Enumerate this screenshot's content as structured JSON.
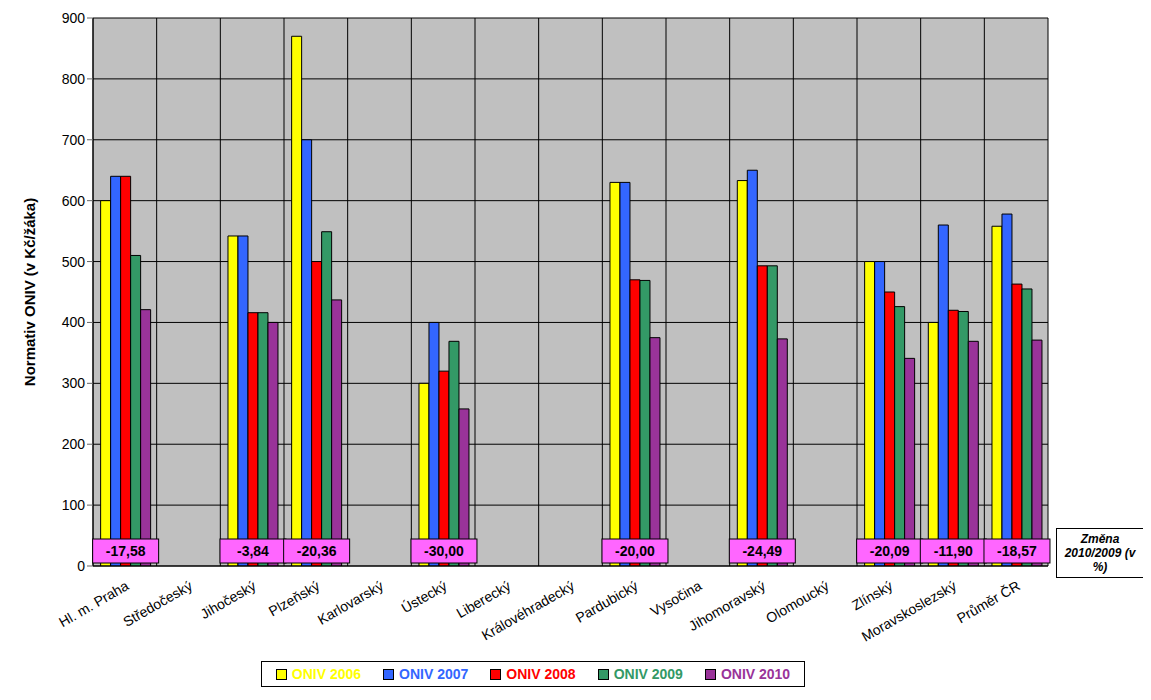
{
  "chart_data": {
    "type": "bar",
    "y_label": "Normativ ONIV (v Kč/žáka)",
    "categories": [
      "Hl. m. Praha",
      "Středočeský",
      "Jihočeský",
      "Plzeňský",
      "Karlovarský",
      "Ústecký",
      "Liberecký",
      "Královéhradecký",
      "Pardubický",
      "Vysočina",
      "Jihomoravský",
      "Olomoucký",
      "Zlínský",
      "Moravskoslezský",
      "Průměr ČR"
    ],
    "series": [
      {
        "name": "ONIV 2006",
        "color": "#ffff00",
        "values": [
          600,
          null,
          542,
          870,
          null,
          300,
          null,
          null,
          630,
          null,
          633,
          null,
          500,
          400,
          558
        ]
      },
      {
        "name": "ONIV 2007",
        "color": "#3366ff",
        "values": [
          640,
          null,
          542,
          700,
          null,
          400,
          null,
          null,
          630,
          null,
          650,
          null,
          500,
          560,
          578
        ]
      },
      {
        "name": "ONIV 2008",
        "color": "#ff0000",
        "values": [
          640,
          null,
          416,
          500,
          null,
          320,
          null,
          null,
          470,
          null,
          493,
          null,
          450,
          420,
          463
        ]
      },
      {
        "name": "ONIV 2009",
        "color": "#339966",
        "values": [
          510,
          null,
          416,
          549,
          null,
          369,
          null,
          null,
          469,
          null,
          493,
          null,
          426,
          418,
          455
        ]
      },
      {
        "name": "ONIV 2010",
        "color": "#993399",
        "values": [
          421,
          null,
          400,
          437,
          null,
          258,
          null,
          null,
          375,
          null,
          373,
          null,
          341,
          369,
          371
        ]
      }
    ],
    "change": {
      "title": "Změna 2010/2009 (v %)",
      "values": [
        -17.58,
        null,
        -3.84,
        -20.36,
        null,
        -30.0,
        null,
        null,
        -20.0,
        null,
        -24.49,
        null,
        -20.09,
        -11.9,
        -18.57
      ],
      "value_labels": [
        "-17,58",
        null,
        "-3,84",
        "-20,36",
        null,
        "-30,00",
        null,
        null,
        "-20,00",
        null,
        "-24,49",
        null,
        "-20,09",
        "-11,90",
        "-18,57"
      ]
    },
    "ylim": [
      0,
      900
    ],
    "yticks": [
      0,
      100,
      200,
      300,
      400,
      500,
      600,
      700,
      800,
      900
    ],
    "grid": true,
    "legend": "bottom"
  }
}
